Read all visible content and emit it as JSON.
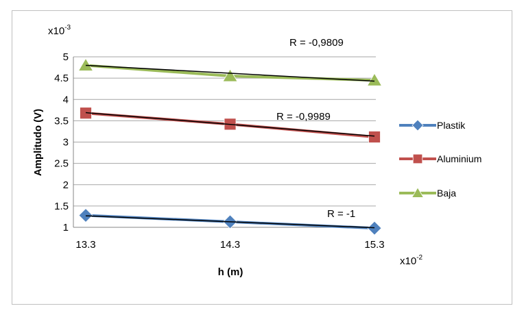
{
  "chart_data": {
    "type": "line",
    "title": "",
    "xlabel": "h (m)",
    "ylabel": "Amplitudo (V)",
    "x_multiplier": {
      "base": "x10",
      "exp": "-2"
    },
    "y_multiplier": {
      "base": "x10",
      "exp": "-3"
    },
    "x": [
      13.3,
      14.3,
      15.3
    ],
    "x_tick_labels": [
      "13.3",
      "14.3",
      "15.3"
    ],
    "ylim": [
      1,
      5
    ],
    "y_ticks": [
      1,
      1.5,
      2,
      2.5,
      3,
      3.5,
      4,
      4.5,
      5
    ],
    "y_tick_labels": [
      "1",
      "1.5",
      "2",
      "2.5",
      "3",
      "3.5",
      "4",
      "4.5",
      "5"
    ],
    "grid": "horizontal",
    "legend_position": "right",
    "series": [
      {
        "name": "Plastik",
        "color": "#4f81bd",
        "marker": "diamond",
        "values": [
          1.28,
          1.13,
          0.98
        ],
        "trend": [
          1.27,
          1.13,
          0.99
        ],
        "r_label": "R = -1"
      },
      {
        "name": "Aluminium",
        "color": "#c0504d",
        "marker": "square",
        "values": [
          3.68,
          3.42,
          3.12
        ],
        "trend": [
          3.69,
          3.42,
          3.14
        ],
        "r_label": "R = -0,9989"
      },
      {
        "name": "Baja",
        "color": "#9bbb59",
        "marker": "triangle",
        "values": [
          4.8,
          4.55,
          4.45
        ],
        "trend": [
          4.8,
          4.61,
          4.43
        ],
        "r_label": "R = -0,9809"
      }
    ]
  }
}
